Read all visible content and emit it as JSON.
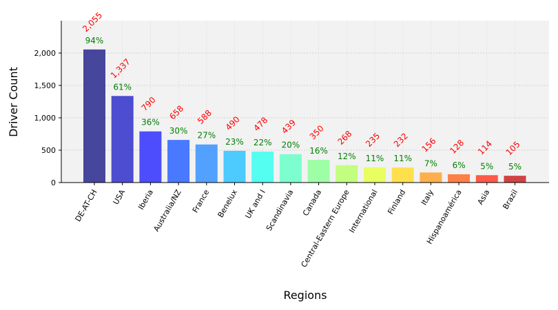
{
  "chart_data": {
    "type": "bar",
    "xlabel": "Regions",
    "ylabel": "Driver Count",
    "ylim": [
      0,
      2500
    ],
    "yticks": [
      0,
      500,
      1000,
      1500,
      2000
    ],
    "ytick_labels": [
      "0",
      "500",
      "1,000",
      "1,500",
      "2,000"
    ],
    "grid": true,
    "categories": [
      "DE-AT-CH",
      "USA",
      "Iberia",
      "Australia/NZ",
      "France",
      "Benelux",
      "UK and I",
      "Scandinavia",
      "Canada",
      "Central-Eastern Europe",
      "International",
      "Finland",
      "Italy",
      "Hispanoamérica",
      "Asia",
      "Brazil"
    ],
    "values": [
      2055,
      1337,
      790,
      658,
      588,
      490,
      478,
      439,
      350,
      268,
      235,
      232,
      156,
      128,
      114,
      105
    ],
    "value_labels": [
      "2,055",
      "1,337",
      "790",
      "658",
      "588",
      "490",
      "478",
      "439",
      "350",
      "268",
      "235",
      "232",
      "156",
      "128",
      "114",
      "105"
    ],
    "percent_labels": [
      "94%",
      "61%",
      "36%",
      "30%",
      "27%",
      "23%",
      "22%",
      "20%",
      "16%",
      "12%",
      "11%",
      "11%",
      "7%",
      "6%",
      "5%",
      "5%"
    ],
    "bar_colors": [
      "#2d2d8f",
      "#3535cc",
      "#3535ff",
      "#3068ff",
      "#3b95ff",
      "#35c4ff",
      "#3dfff0",
      "#6cffc9",
      "#92ff9b",
      "#bbff70",
      "#e6ff4c",
      "#ffdd35",
      "#ffa535",
      "#ff6f2e",
      "#ff4430",
      "#cc2a2a"
    ],
    "value_label_color": "#ff0000",
    "percent_label_color": "#008000"
  }
}
